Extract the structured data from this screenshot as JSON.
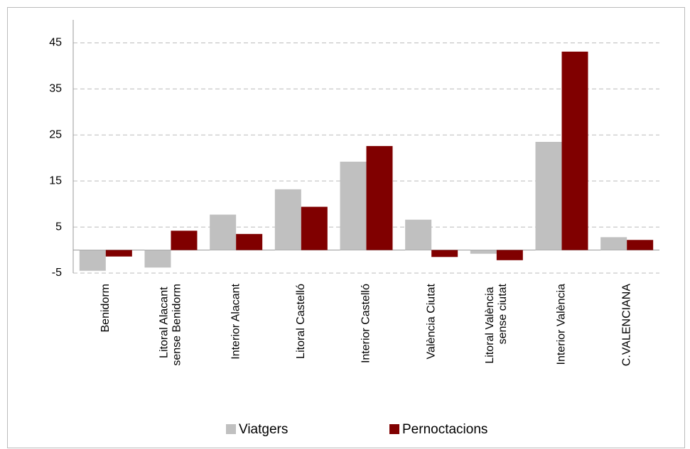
{
  "chart_data": {
    "type": "bar",
    "categories": [
      "Benidorm",
      "Litoral Alacant sense Benidorm",
      "Interior Alacant",
      "Litoral Castelló",
      "Interior Castelló",
      "València Ciutat",
      "Litoral València sense ciutat",
      "Interior València",
      "C.VALENCIANA"
    ],
    "series": [
      {
        "name": "Viatgers",
        "color": "#c0c0c0",
        "values": [
          -4.5,
          -3.8,
          7.7,
          13.2,
          19.2,
          6.6,
          -0.8,
          23.5,
          2.8
        ]
      },
      {
        "name": "Pernoctacions",
        "color": "#800000",
        "values": [
          -1.4,
          4.2,
          3.5,
          9.4,
          22.6,
          -1.5,
          -2.2,
          43.1,
          2.2
        ]
      }
    ],
    "ylim": [
      -5,
      50
    ],
    "yticks": [
      -5,
      5,
      15,
      25,
      35,
      45
    ],
    "grid": true,
    "legend": "bottom"
  }
}
